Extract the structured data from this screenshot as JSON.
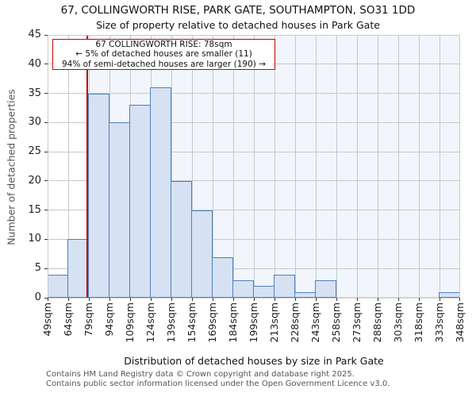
{
  "title": "67, COLLINGWORTH RISE, PARK GATE, SOUTHAMPTON, SO31 1DD",
  "subtitle": "Size of property relative to detached houses in Park Gate",
  "annotation": {
    "line1": "67 COLLINGWORTH RISE: 78sqm",
    "line2": "← 5% of detached houses are smaller (11)",
    "line3": "94% of semi-detached houses are larger (190) →"
  },
  "chart_data": {
    "type": "bar",
    "subtype": "histogram",
    "title": "67, COLLINGWORTH RISE, PARK GATE, SOUTHAMPTON, SO31 1DD",
    "subtitle": "Size of property relative to detached houses in Park Gate",
    "xlabel": "Distribution of detached houses by size in Park Gate",
    "ylabel": "Number of detached properties",
    "bin_edge_labels": [
      "49sqm",
      "64sqm",
      "79sqm",
      "94sqm",
      "109sqm",
      "124sqm",
      "139sqm",
      "154sqm",
      "169sqm",
      "184sqm",
      "199sqm",
      "213sqm",
      "228sqm",
      "243sqm",
      "258sqm",
      "273sqm",
      "288sqm",
      "303sqm",
      "318sqm",
      "333sqm",
      "348sqm"
    ],
    "bin_edges_sqm": [
      49,
      64,
      79,
      94,
      109,
      124,
      139,
      154,
      169,
      184,
      199,
      213,
      228,
      243,
      258,
      273,
      288,
      303,
      318,
      333,
      348
    ],
    "values": [
      4,
      10,
      35,
      30,
      33,
      36,
      20,
      15,
      7,
      3,
      2,
      4,
      1,
      3,
      0,
      0,
      0,
      0,
      0,
      1
    ],
    "yticks": [
      0,
      5,
      10,
      15,
      20,
      25,
      30,
      35,
      40,
      45
    ],
    "ylim": [
      0,
      45
    ],
    "grid": true,
    "marker": {
      "value_sqm": 78,
      "label": "67 COLLINGWORTH RISE: 78sqm"
    },
    "colors": {
      "bar_fill": "#d6e1f3",
      "bar_edge": "#4d80bf",
      "marker_line": "#bb0000",
      "annotation_border": "#cc0000",
      "span_highlight": "#f2f5fc",
      "grid": "#c8c8c8"
    }
  },
  "footer": {
    "line1": "Contains HM Land Registry data © Crown copyright and database right 2025.",
    "line2": "Contains public sector information licensed under the Open Government Licence v3.0."
  }
}
